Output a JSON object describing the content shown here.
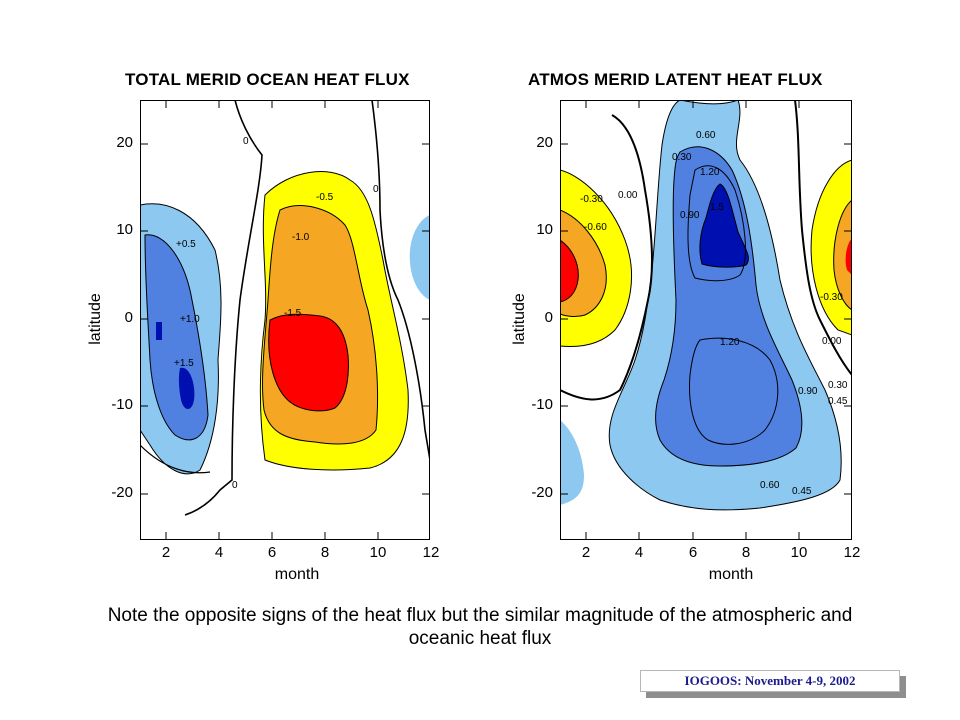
{
  "chart_data": [
    {
      "type": "contour",
      "title": "TOTAL MERID OCEAN HEAT FLUX",
      "xlabel": "month",
      "ylabel": "latitude",
      "xlim": [
        1,
        12
      ],
      "ylim": [
        -25,
        25
      ],
      "xticks": [
        "2",
        "4",
        "6",
        "8",
        "10",
        "12"
      ],
      "yticks": [
        "20",
        "10",
        "0",
        "-10",
        "-20"
      ],
      "contour_labels": [
        "0",
        "0",
        "0",
        "-0.5",
        "-1.0",
        "-1.5",
        "+0.5",
        "+1.0",
        "+1.5"
      ],
      "levels": [
        -1.5,
        -1.0,
        -0.5,
        0,
        0.5,
        1.0,
        1.5
      ],
      "colors": {
        "neg_strong": "#ff0000",
        "neg_mid": "#f5a623",
        "neg_weak": "#ffff00",
        "pos_weak": "#8cc8f0",
        "pos_mid": "#5080e0",
        "pos_strong": "#0010b0"
      }
    },
    {
      "type": "contour",
      "title": "ATMOS MERID LATENT HEAT FLUX",
      "xlabel": "month",
      "ylabel": "latitude",
      "xlim": [
        1,
        12
      ],
      "ylim": [
        -25,
        25
      ],
      "xticks": [
        "2",
        "4",
        "6",
        "8",
        "10",
        "12"
      ],
      "yticks": [
        "20",
        "10",
        "0",
        "-10",
        "-20"
      ],
      "contour_labels": [
        "0.60",
        "0.30",
        "1.20",
        "0.90",
        "1.5",
        "-0.30",
        "-0.60",
        "0.00",
        "1.20",
        "0.90",
        "0.60",
        "0.45",
        "-0.30",
        "0.00",
        "0.30",
        "0.45"
      ],
      "levels": [
        -0.6,
        -0.3,
        0.0,
        0.3,
        0.45,
        0.6,
        0.9,
        1.2,
        1.5
      ],
      "colors": {
        "neg_strong": "#ff0000",
        "neg_mid": "#f5a623",
        "neg_weak": "#ffff00",
        "pos_weak": "#8cc8f0",
        "pos_mid": "#5080e0",
        "pos_strong": "#0010b0"
      }
    }
  ],
  "caption": "Note the opposite signs of the heat flux but the similar magnitude of the atmospheric and oceanic heat flux",
  "footer": "IOGOOS: November 4-9, 2002"
}
